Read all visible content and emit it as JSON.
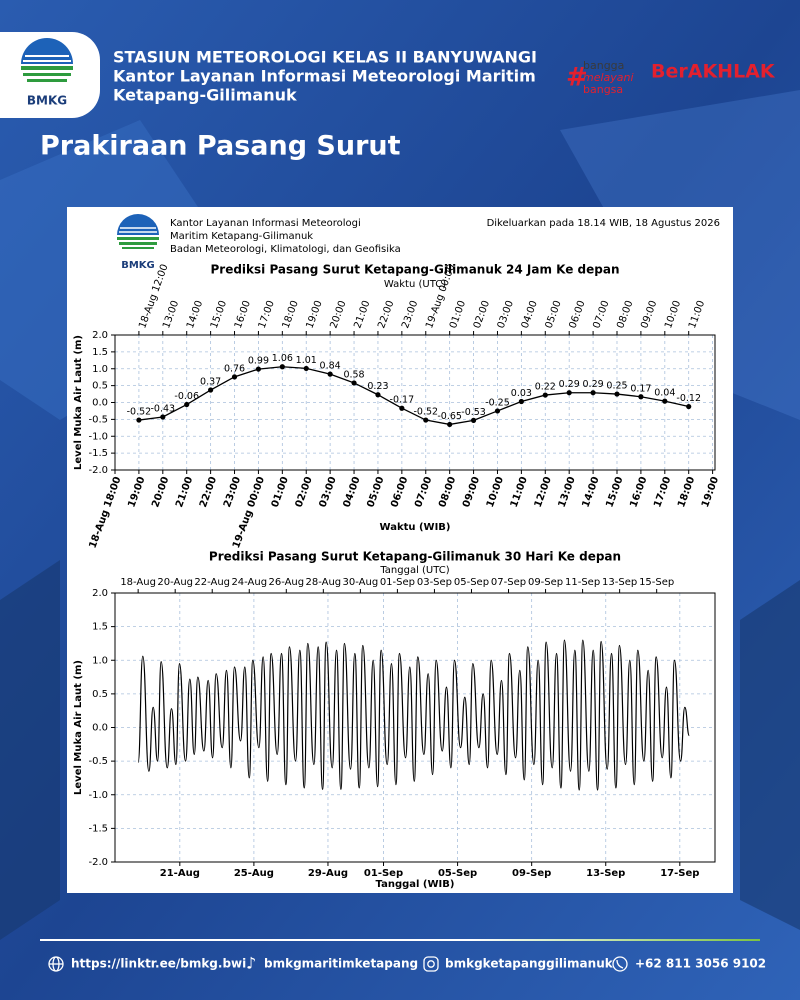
{
  "header": {
    "logo_text": "BMKG",
    "title_lines": [
      "STASIUN METEOROLOGI KELAS II BANYUWANGI",
      "Kantor Layanan Informasi Meteorologi Maritim",
      "Ketapang-Gilimanuk"
    ],
    "slogan_lines": [
      "bangga",
      "melayani",
      "bangsa"
    ],
    "core_values": "BerAKHLAK"
  },
  "page_title": "Prakiraan Pasang Surut",
  "panel": {
    "logo_text": "BMKG",
    "org_lines": [
      "Kantor Layanan Informasi Meteorologi",
      "Maritim Ketapang-Gilimanuk",
      "Badan Meteorologi, Klimatologi, dan Geofisika"
    ],
    "issued": "Dikeluarkan pada 18.14 WIB, 18 Agustus 2026"
  },
  "chart_data": [
    {
      "type": "line",
      "title": "Prediksi Pasang Surut Ketapang-Gilimanuk 24 Jam Ke depan",
      "x2label": "Waktu (UTC)",
      "xlabel": "Waktu (WIB)",
      "ylabel": "Level Muka Air Laut (m)",
      "x": [
        1,
        2,
        3,
        4,
        5,
        6,
        7,
        8,
        9,
        10,
        11,
        12,
        13,
        14,
        15,
        16,
        17,
        18,
        19,
        20,
        21,
        22,
        23,
        24
      ],
      "values": [
        -0.52,
        -0.43,
        -0.06,
        0.37,
        0.76,
        0.99,
        1.06,
        1.01,
        0.84,
        0.58,
        0.23,
        -0.17,
        -0.52,
        -0.65,
        -0.53,
        -0.25,
        0.03,
        0.22,
        0.29,
        0.29,
        0.25,
        0.17,
        0.04,
        -0.12
      ],
      "color": "#000000",
      "markers": true,
      "data_labels": true,
      "smooth": false,
      "rotated_ticks": true,
      "grid": true,
      "xlim": [
        0,
        25.1
      ],
      "xticks": [
        {
          "value": 0,
          "label": "18-Aug 18:00"
        },
        {
          "value": 1,
          "label": "19:00"
        },
        {
          "value": 2,
          "label": "20:00"
        },
        {
          "value": 3,
          "label": "21:00"
        },
        {
          "value": 4,
          "label": "22:00"
        },
        {
          "value": 5,
          "label": "23:00"
        },
        {
          "value": 6,
          "label": "19-Aug 00:00"
        },
        {
          "value": 7,
          "label": "01:00"
        },
        {
          "value": 8,
          "label": "02:00"
        },
        {
          "value": 9,
          "label": "03:00"
        },
        {
          "value": 10,
          "label": "04:00"
        },
        {
          "value": 11,
          "label": "05:00"
        },
        {
          "value": 12,
          "label": "06:00"
        },
        {
          "value": 13,
          "label": "07:00"
        },
        {
          "value": 14,
          "label": "08:00"
        },
        {
          "value": 15,
          "label": "09:00"
        },
        {
          "value": 16,
          "label": "10:00"
        },
        {
          "value": 17,
          "label": "11:00"
        },
        {
          "value": 18,
          "label": "12:00"
        },
        {
          "value": 19,
          "label": "13:00"
        },
        {
          "value": 20,
          "label": "14:00"
        },
        {
          "value": 21,
          "label": "15:00"
        },
        {
          "value": 22,
          "label": "16:00"
        },
        {
          "value": 23,
          "label": "17:00"
        },
        {
          "value": 24,
          "label": "18:00"
        },
        {
          "value": 25,
          "label": "19:00"
        }
      ],
      "x2ticks": [
        {
          "value": 1,
          "label": "18-Aug 12:00"
        },
        {
          "value": 2,
          "label": "13:00"
        },
        {
          "value": 3,
          "label": "14:00"
        },
        {
          "value": 4,
          "label": "15:00"
        },
        {
          "value": 5,
          "label": "16:00"
        },
        {
          "value": 6,
          "label": "17:00"
        },
        {
          "value": 7,
          "label": "18:00"
        },
        {
          "value": 8,
          "label": "19:00"
        },
        {
          "value": 9,
          "label": "20:00"
        },
        {
          "value": 10,
          "label": "21:00"
        },
        {
          "value": 11,
          "label": "22:00"
        },
        {
          "value": 12,
          "label": "23:00"
        },
        {
          "value": 13,
          "label": "19-Aug 00:00"
        },
        {
          "value": 14,
          "label": "01:00"
        },
        {
          "value": 15,
          "label": "02:00"
        },
        {
          "value": 16,
          "label": "03:00"
        },
        {
          "value": 17,
          "label": "04:00"
        },
        {
          "value": 18,
          "label": "05:00"
        },
        {
          "value": 19,
          "label": "06:00"
        },
        {
          "value": 20,
          "label": "07:00"
        },
        {
          "value": 21,
          "label": "08:00"
        },
        {
          "value": 22,
          "label": "09:00"
        },
        {
          "value": 23,
          "label": "10:00"
        },
        {
          "value": 24,
          "label": "11:00"
        }
      ],
      "ylim": [
        -2,
        2
      ],
      "yticks": [
        {
          "value": -2,
          "label": "-2.0"
        },
        -1.5,
        {
          "value": -1,
          "label": "-1.0"
        },
        -0.5,
        {
          "value": 0,
          "label": "0.0"
        },
        0.5,
        {
          "value": 1,
          "label": "1.0"
        },
        1.5,
        {
          "value": 2,
          "label": "2.0"
        }
      ]
    },
    {
      "type": "line",
      "title": "Prediksi Pasang Surut Ketapang-Gilimanuk 30 Hari Ke depan",
      "x2label": "Tanggal (UTC)",
      "xlabel": "Tanggal (WIB)",
      "ylabel": "Level Muka Air Laut (m)",
      "x": [
        0.75,
        1.0,
        1.33,
        1.56,
        1.8,
        1.99,
        2.32,
        2.55,
        2.79,
        2.98,
        3.31,
        3.54,
        3.78,
        3.97,
        4.3,
        4.53,
        4.77,
        4.96,
        5.29,
        5.52,
        5.76,
        5.95,
        6.28,
        6.51,
        6.75,
        6.94,
        7.27,
        7.5,
        7.74,
        7.93,
        8.26,
        8.49,
        8.73,
        8.92,
        9.25,
        9.48,
        9.72,
        9.91,
        10.24,
        10.47,
        10.71,
        10.9,
        11.23,
        11.46,
        11.7,
        11.89,
        12.22,
        12.45,
        12.69,
        12.88,
        13.21,
        13.44,
        13.68,
        13.87,
        14.2,
        14.43,
        14.67,
        14.86,
        15.19,
        15.42,
        15.66,
        15.85,
        16.18,
        16.41,
        16.65,
        16.84,
        17.17,
        17.4,
        17.64,
        17.83,
        18.16,
        18.39,
        18.63,
        18.82,
        19.15,
        19.38,
        19.62,
        19.81,
        20.14,
        20.37,
        20.61,
        20.8,
        21.13,
        21.36,
        21.6,
        21.79,
        22.12,
        22.35,
        22.59,
        22.78,
        23.11,
        23.34,
        23.58,
        23.77,
        24.1,
        24.33,
        24.57,
        24.76,
        25.09,
        25.32,
        25.56,
        25.75,
        26.08,
        26.31,
        26.55,
        26.74,
        27.07,
        27.3,
        27.54,
        27.73,
        28.06,
        28.29,
        28.53,
        28.72,
        29.05,
        29.28,
        29.52,
        29.71,
        30.04,
        30.27,
        30.51
      ],
      "values": [
        -0.52,
        1.06,
        -0.65,
        0.3,
        -0.5,
        0.98,
        -0.6,
        0.28,
        -0.55,
        0.95,
        -0.5,
        0.72,
        -0.4,
        0.75,
        -0.35,
        0.7,
        -0.45,
        0.8,
        -0.3,
        0.85,
        -0.6,
        0.9,
        -0.2,
        0.9,
        -0.75,
        1.0,
        -0.3,
        1.05,
        -0.8,
        1.1,
        -0.4,
        1.1,
        -0.85,
        1.2,
        -0.5,
        1.15,
        -0.9,
        1.25,
        -0.55,
        1.2,
        -0.92,
        1.27,
        -0.6,
        1.15,
        -0.92,
        1.25,
        -0.62,
        1.1,
        -0.9,
        1.22,
        -0.6,
        1.0,
        -0.88,
        1.15,
        -0.55,
        0.95,
        -0.85,
        1.1,
        -0.45,
        0.9,
        -0.8,
        1.05,
        -0.4,
        0.8,
        -0.7,
        1.0,
        -0.35,
        0.6,
        -0.6,
        1.0,
        -0.3,
        0.45,
        -0.55,
        0.95,
        -0.3,
        0.5,
        -0.6,
        1.0,
        -0.4,
        0.7,
        -0.7,
        1.1,
        -0.45,
        0.85,
        -0.78,
        1.2,
        -0.55,
        1.0,
        -0.85,
        1.27,
        -0.6,
        1.1,
        -0.9,
        1.3,
        -0.65,
        1.15,
        -0.93,
        1.3,
        -0.65,
        1.15,
        -0.93,
        1.28,
        -0.62,
        1.1,
        -0.9,
        1.22,
        -0.55,
        1.0,
        -0.85,
        1.15,
        -0.5,
        0.85,
        -0.8,
        1.05,
        -0.45,
        0.6,
        -0.75,
        1.0,
        -0.5,
        0.3,
        -0.12
      ],
      "color": "#000000",
      "markers": false,
      "data_labels": false,
      "smooth": true,
      "rotated_ticks": false,
      "grid": true,
      "xlim": [
        -0.5,
        31.9
      ],
      "xticks": [
        {
          "value": 3,
          "label": "21-Aug"
        },
        {
          "value": 7,
          "label": "25-Aug"
        },
        {
          "value": 11,
          "label": "29-Aug"
        },
        {
          "value": 14,
          "label": "01-Sep"
        },
        {
          "value": 18,
          "label": "05-Sep"
        },
        {
          "value": 22,
          "label": "09-Sep"
        },
        {
          "value": 26,
          "label": "13-Sep"
        },
        {
          "value": 30,
          "label": "17-Sep"
        }
      ],
      "x2ticks": [
        {
          "value": 0.75,
          "label": "18-Aug"
        },
        {
          "value": 2.75,
          "label": "20-Aug"
        },
        {
          "value": 4.75,
          "label": "22-Aug"
        },
        {
          "value": 6.75,
          "label": "24-Aug"
        },
        {
          "value": 8.75,
          "label": "26-Aug"
        },
        {
          "value": 10.75,
          "label": "28-Aug"
        },
        {
          "value": 12.75,
          "label": "30-Aug"
        },
        {
          "value": 14.75,
          "label": "01-Sep"
        },
        {
          "value": 16.75,
          "label": "03-Sep"
        },
        {
          "value": 18.75,
          "label": "05-Sep"
        },
        {
          "value": 20.75,
          "label": "07-Sep"
        },
        {
          "value": 22.75,
          "label": "09-Sep"
        },
        {
          "value": 24.75,
          "label": "11-Sep"
        },
        {
          "value": 26.75,
          "label": "13-Sep"
        },
        {
          "value": 28.75,
          "label": "15-Sep"
        }
      ],
      "ylim": [
        -2,
        2
      ],
      "yticks": [
        {
          "value": -2,
          "label": "-2.0"
        },
        -1.5,
        {
          "value": -1,
          "label": "-1.0"
        },
        -0.5,
        {
          "value": 0,
          "label": "0.0"
        },
        0.5,
        {
          "value": 1,
          "label": "1.0"
        },
        1.5,
        {
          "value": 2,
          "label": "2.0"
        }
      ]
    }
  ],
  "footer": {
    "links": [
      "https://linktr.ee/bmkg.bwi",
      "bmkgmaritimketapang",
      "bmkgketapanggilimanuk",
      "+62 811 3056 9102"
    ]
  }
}
